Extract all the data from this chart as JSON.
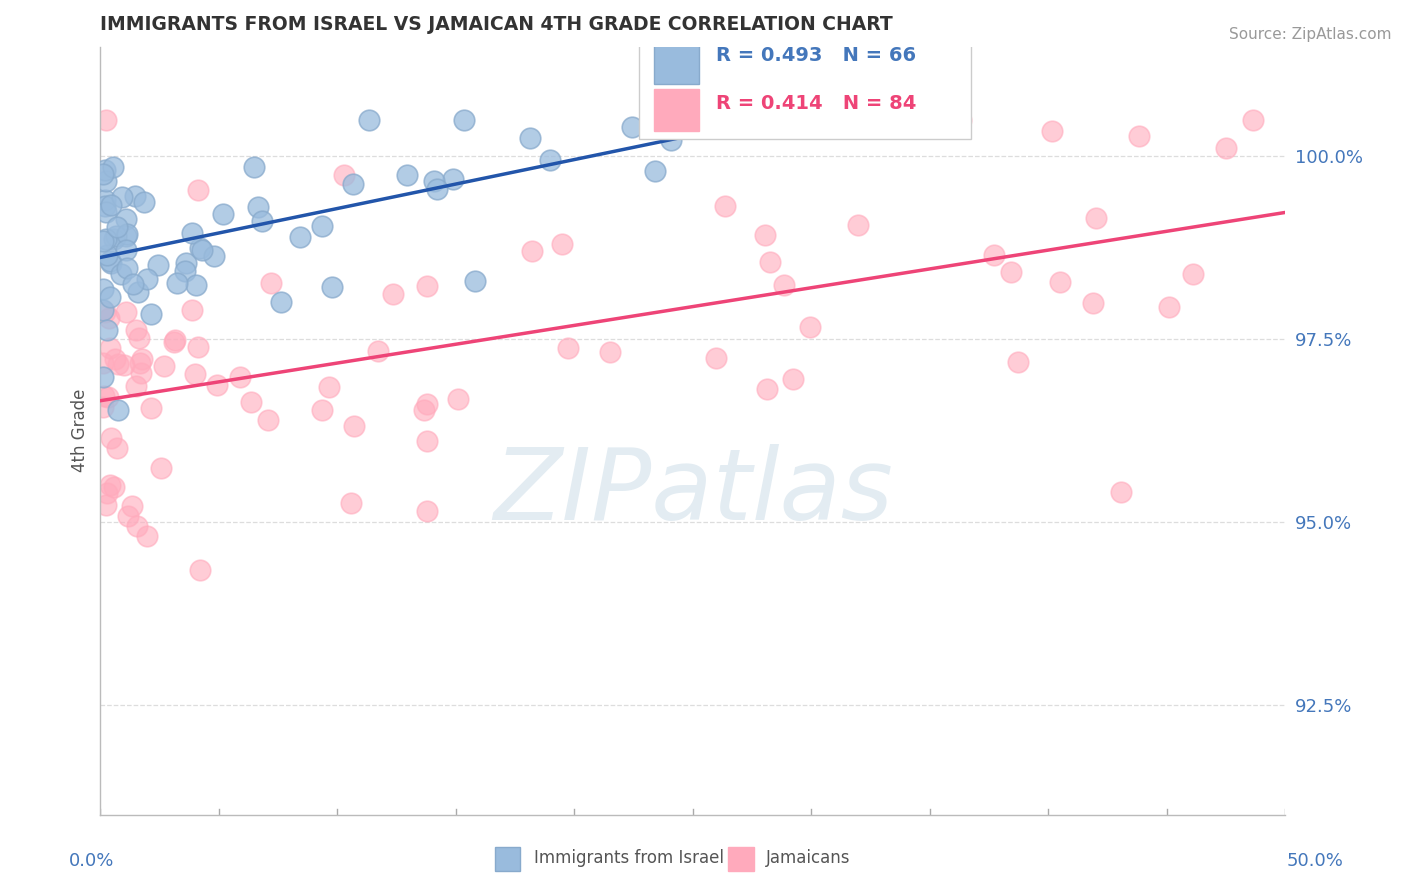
{
  "title": "IMMIGRANTS FROM ISRAEL VS JAMAICAN 4TH GRADE CORRELATION CHART",
  "source": "Source: ZipAtlas.com",
  "ylabel": "4th Grade",
  "xlim": [
    0.0,
    50.0
  ],
  "ylim": [
    91.0,
    101.5
  ],
  "yticks": [
    92.5,
    95.0,
    97.5,
    100.0
  ],
  "blue_color": "#99BBDD",
  "blue_edge_color": "#88AACC",
  "pink_color": "#FFAABC",
  "pink_edge_color": "#FFAABC",
  "blue_line_color": "#2255AA",
  "pink_line_color": "#EE4477",
  "text_color": "#4477BB",
  "pink_text_color": "#EE4477",
  "title_color": "#333333",
  "source_color": "#999999",
  "ylabel_color": "#555555",
  "grid_color": "#DDDDDD",
  "watermark_color": "#CCDDE8",
  "legend_r_blue": "R = 0.493",
  "legend_n_blue": "N = 66",
  "legend_r_pink": "R = 0.414",
  "legend_n_pink": "N = 84"
}
